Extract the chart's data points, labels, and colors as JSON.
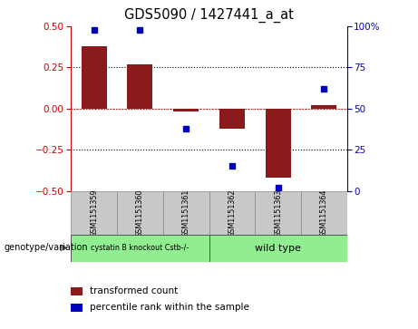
{
  "title": "GDS5090 / 1427441_a_at",
  "samples": [
    "GSM1151359",
    "GSM1151360",
    "GSM1151361",
    "GSM1151362",
    "GSM1151363",
    "GSM1151364"
  ],
  "bar_values": [
    0.38,
    0.27,
    -0.02,
    -0.12,
    -0.42,
    0.02
  ],
  "percentile_values": [
    98,
    98,
    38,
    15,
    2,
    62
  ],
  "ylim_left": [
    -0.5,
    0.5
  ],
  "ylim_right": [
    0,
    100
  ],
  "yticks_left": [
    -0.5,
    -0.25,
    0.0,
    0.25,
    0.5
  ],
  "yticks_right": [
    0,
    25,
    50,
    75,
    100
  ],
  "bar_color": "#8B1A1A",
  "dot_color": "#0000BB",
  "zero_line_color": "#CC0000",
  "group1_label": "cystatin B knockout Cstb-/-",
  "group2_label": "wild type",
  "group1_color": "#90EE90",
  "group2_color": "#90EE90",
  "sample_box_color": "#C8C8C8",
  "genotype_label": "genotype/variation",
  "legend_bar_label": "transformed count",
  "legend_dot_label": "percentile rank within the sample"
}
